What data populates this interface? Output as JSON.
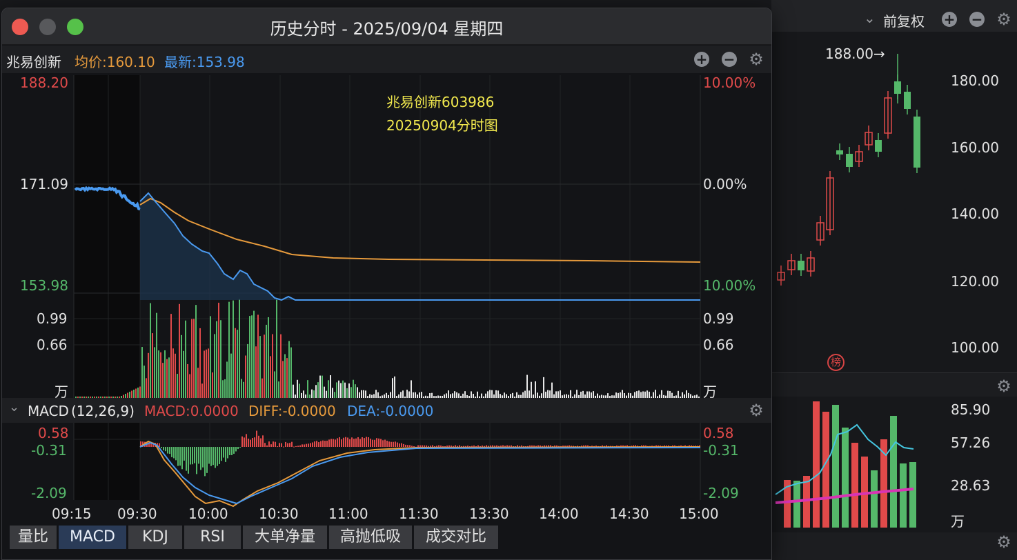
{
  "bg": {
    "top_right": {
      "label": "前复权"
    },
    "price_axis": [
      "180.00",
      "160.00",
      "140.00",
      "120.00",
      "100.00"
    ],
    "peak_label": "188.00→",
    "badge": "榜",
    "vol_axis": [
      "85.90",
      "57.26",
      "28.63",
      "万"
    ]
  },
  "window": {
    "title": "历史分时 - 2025/09/04 星期四",
    "stock_name": "兆易创新",
    "avg_price": "均价:160.10",
    "latest": "最新:153.98",
    "annotation_line1": "兆易创新603986",
    "annotation_line2": "20250904分时图",
    "left_axis": {
      "top": "188.20",
      "mid": "171.09",
      "bottom": "153.98"
    },
    "right_axis": {
      "top": "10.00%",
      "mid": "0.00%",
      "bottom": "10.00%"
    },
    "vol_axis_left": [
      "0.99",
      "0.66",
      "万"
    ],
    "vol_axis_right": [
      "0.99",
      "0.66",
      "万"
    ],
    "macd": {
      "name": "MACD",
      "params": "(12,26,9)",
      "macd_val": "MACD:0.0000",
      "diff_val": "DIFF:-0.0000",
      "dea_val": "DEA:-0.0000",
      "axis_left": [
        "0.58",
        "-0.31",
        "-2.09"
      ],
      "axis_right": [
        "0.58",
        "-0.31",
        "-2.09"
      ]
    },
    "time_axis": [
      "09:15",
      "09:30",
      "10:00",
      "10:30",
      "11:00",
      "11:30",
      "13:30",
      "14:00",
      "14:30",
      "15:00"
    ],
    "tabs": [
      "量比",
      "MACD",
      "KDJ",
      "RSI",
      "大单净量",
      "高抛低吸",
      "成交对比"
    ]
  },
  "colors": {
    "up": "#e04a4a",
    "down": "#55b86a",
    "price": "#4a9af0",
    "avg": "#e69a3c",
    "yellow": "#f2e94e"
  }
}
